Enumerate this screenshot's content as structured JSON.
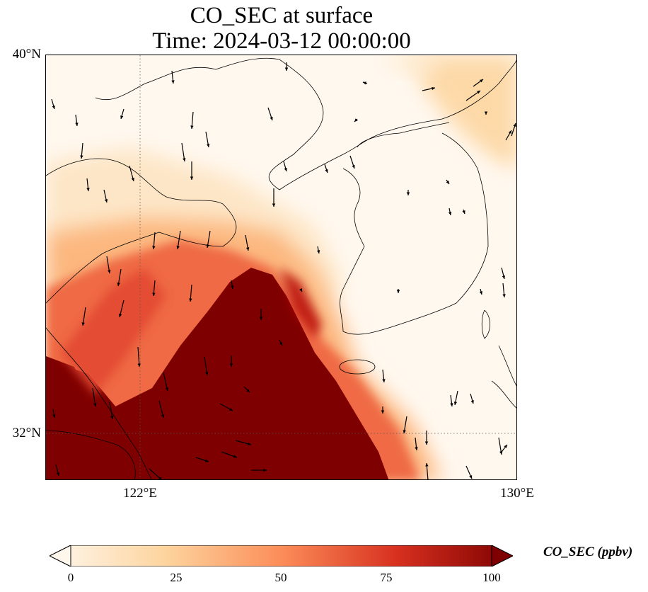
{
  "title": {
    "line1": "CO_SEC at surface",
    "line2": "Time: 2024-03-12 00:00:00"
  },
  "map": {
    "lon_range": [
      120,
      130
    ],
    "lat_range": [
      31,
      40
    ],
    "lat_ticks": [
      {
        "value": 40,
        "label": "40°N"
      },
      {
        "value": 32,
        "label": "32°N"
      }
    ],
    "lon_ticks": [
      {
        "value": 122,
        "label": "122°E"
      },
      {
        "value": 130,
        "label": "130°E"
      }
    ],
    "gridlines": "dotted",
    "field": {
      "name": "CO_SEC",
      "high_region": "southwest (Yangtze delta, Yellow Sea south)",
      "moderate_region": "northeast corner (North Korea / Liaoning border)",
      "wind_vectors": "mostly northerly, weak over Korea"
    }
  },
  "colorbar": {
    "label": "CO_SEC (ppbv)",
    "min": 0,
    "max": 100,
    "ticks": [
      "0",
      "25",
      "50",
      "75",
      "100"
    ],
    "colormap": "OrRd",
    "extend": "both"
  },
  "colors": {
    "c0": "#fff7ec",
    "c25": "#fdd49e",
    "c50": "#fc8d59",
    "c75": "#d7301f",
    "c100": "#7f0000"
  }
}
